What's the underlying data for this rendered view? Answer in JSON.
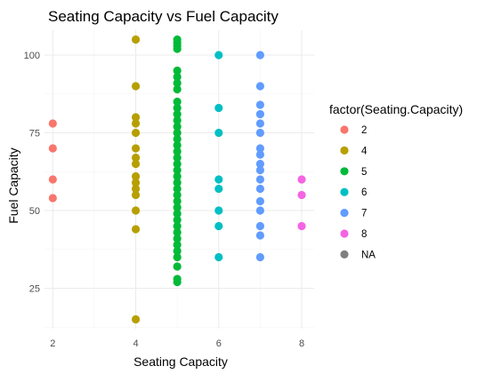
{
  "chart_data": {
    "type": "scatter",
    "title": "Seating Capacity vs Fuel Capacity",
    "xlabel": "Seating Capacity",
    "ylabel": "Fuel Capacity",
    "xlim": [
      1.8,
      8.3
    ],
    "ylim": [
      12,
      108
    ],
    "x_ticks": [
      2,
      4,
      6,
      8
    ],
    "y_ticks": [
      25,
      50,
      75,
      100
    ],
    "grid": true,
    "legend": {
      "title": "factor(Seating.Capacity)",
      "placement": "right",
      "entries": [
        {
          "label": "2",
          "color": "#F8766D"
        },
        {
          "label": "4",
          "color": "#B79F00"
        },
        {
          "label": "5",
          "color": "#00BA38"
        },
        {
          "label": "6",
          "color": "#00BFC4"
        },
        {
          "label": "7",
          "color": "#619CFF"
        },
        {
          "label": "8",
          "color": "#F564E3"
        },
        {
          "label": "NA",
          "color": "#7F7F7F"
        }
      ]
    },
    "series": [
      {
        "name": "2",
        "color": "#F8766D",
        "x": 2,
        "y": [
          78,
          70,
          60,
          54
        ]
      },
      {
        "name": "4",
        "color": "#B79F00",
        "x": 4,
        "y": [
          105,
          90,
          80,
          78,
          75,
          70,
          67,
          65,
          61,
          59,
          57,
          55,
          50,
          44,
          15
        ]
      },
      {
        "name": "5",
        "color": "#00BA38",
        "x": 5,
        "y": [
          105,
          104,
          103,
          102,
          95,
          93,
          91,
          89,
          85,
          83,
          81,
          79,
          77,
          75,
          73,
          71,
          69,
          67,
          65,
          63,
          61,
          59,
          57,
          55,
          53,
          51,
          49,
          47,
          45,
          43,
          41,
          39,
          37,
          35,
          32,
          28,
          27
        ]
      },
      {
        "name": "6",
        "color": "#00BFC4",
        "x": 6,
        "y": [
          100,
          83,
          75,
          60,
          57,
          50,
          45,
          35
        ]
      },
      {
        "name": "7",
        "color": "#619CFF",
        "x": 7,
        "y": [
          100,
          90,
          84,
          81,
          78,
          75,
          70,
          68,
          65,
          63,
          60,
          57,
          53,
          50,
          45,
          42,
          35
        ]
      },
      {
        "name": "8",
        "color": "#F564E3",
        "x": 8,
        "y": [
          60,
          55,
          45
        ]
      }
    ]
  }
}
